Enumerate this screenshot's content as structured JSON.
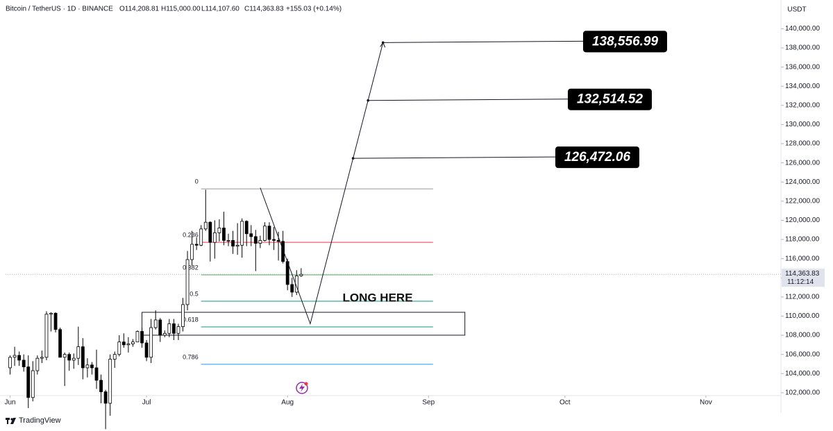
{
  "chart_data": {
    "type": "candlestick",
    "header": [
      "Bitcoin / TetherUS · 1D · BINANCE",
      "O114,208.81",
      "H115,000.00",
      "L114,107.60",
      "C114,363.83",
      "+155.03 (+0.14%)"
    ],
    "y_unit": "USDT",
    "brand": "TradingView",
    "annotation": "LONG HERE",
    "last_price_label": "114,363.83",
    "countdown": "11:12:14",
    "xlim": [
      -1,
      169.5
    ],
    "ylim": [
      101700,
      143000
    ],
    "xticks": [
      {
        "value": 0,
        "label": "Jun"
      },
      {
        "value": 30,
        "label": "Jul"
      },
      {
        "value": 61,
        "label": "Aug"
      },
      {
        "value": 92,
        "label": "Sep"
      },
      {
        "value": 122,
        "label": "Oct"
      },
      {
        "value": 153,
        "label": "Nov"
      }
    ],
    "yticks": [
      {
        "value": 102000,
        "label": "102,000.00"
      },
      {
        "value": 104000,
        "label": "104,000.00"
      },
      {
        "value": 106000,
        "label": "106,000.00"
      },
      {
        "value": 108000,
        "label": "108,000.00"
      },
      {
        "value": 110000,
        "label": "110,000.00"
      },
      {
        "value": 112000,
        "label": "112,000.00"
      },
      {
        "value": 114000,
        "label": "114,000.00"
      },
      {
        "value": 116000,
        "label": "116,000.00"
      },
      {
        "value": 118000,
        "label": "118,000.00"
      },
      {
        "value": 120000,
        "label": "120,000.00"
      },
      {
        "value": 122000,
        "label": "122,000.00"
      },
      {
        "value": 124000,
        "label": "124,000.00"
      },
      {
        "value": 126000,
        "label": "126,000.00"
      },
      {
        "value": 128000,
        "label": "128,000.00"
      },
      {
        "value": 130000,
        "label": "130,000.00"
      },
      {
        "value": 132000,
        "label": "132,000.00"
      },
      {
        "value": 134000,
        "label": "134,000.00"
      },
      {
        "value": 136000,
        "label": "136,000.00"
      },
      {
        "value": 138000,
        "label": "138,000.00"
      },
      {
        "value": 140000,
        "label": "140,000.00"
      }
    ],
    "up_color": "#ffffff",
    "down_color": "#000000",
    "x": [
      0,
      1,
      2,
      3,
      4,
      5,
      6,
      7,
      8,
      9,
      10,
      11,
      12,
      13,
      14,
      15,
      16,
      17,
      18,
      19,
      20,
      21,
      22,
      23,
      24,
      25,
      26,
      27,
      28,
      29,
      30,
      31,
      32,
      33,
      34,
      35,
      36,
      37,
      38,
      39,
      40,
      41,
      42,
      43,
      44,
      45,
      46,
      47,
      48,
      49,
      50,
      51,
      52,
      53,
      54,
      55,
      56,
      57,
      58,
      59,
      60,
      61,
      62,
      63,
      64
    ],
    "open": [
      104600,
      105700,
      105900,
      105400,
      104700,
      101500,
      104300,
      105600,
      105700,
      110200,
      110300,
      108600,
      105700,
      106000,
      105400,
      105600,
      106800,
      104600,
      104900,
      104600,
      103300,
      102100,
      100900,
      105500,
      106000,
      107300,
      107000,
      107100,
      107300,
      108400,
      107200,
      105700,
      108800,
      109600,
      108000,
      108200,
      109200,
      108200,
      108900,
      111200,
      115900,
      117500,
      117400,
      119100,
      119800,
      117700,
      118700,
      119200,
      117900,
      117900,
      117300,
      117400,
      119900,
      118600,
      118300,
      117600,
      117900,
      119400,
      118000,
      117900,
      117800,
      115700,
      113300,
      112500,
      114208.81
    ],
    "high": [
      105900,
      106800,
      106300,
      106000,
      105900,
      105300,
      105900,
      106400,
      110500,
      110400,
      110400,
      108800,
      106200,
      106200,
      106100,
      108900,
      107700,
      105600,
      105200,
      106500,
      103900,
      102300,
      106000,
      106300,
      108000,
      108200,
      107800,
      107600,
      108500,
      108800,
      107500,
      109700,
      110600,
      109800,
      108500,
      109700,
      109700,
      109200,
      111900,
      116800,
      118900,
      118200,
      119500,
      123200,
      119900,
      120000,
      120100,
      120900,
      118600,
      118900,
      119700,
      120200,
      120000,
      119500,
      119000,
      118400,
      119800,
      119800,
      119300,
      118800,
      118900,
      116000,
      114000,
      114800,
      115000
    ],
    "low": [
      103900,
      104800,
      104800,
      104200,
      100400,
      101100,
      103900,
      105100,
      105400,
      108400,
      108300,
      105700,
      102700,
      104300,
      104500,
      104900,
      103400,
      103600,
      103900,
      102400,
      100900,
      98200,
      99600,
      104600,
      105800,
      106700,
      106200,
      106800,
      107300,
      106700,
      105300,
      105100,
      108600,
      107300,
      107800,
      107800,
      107500,
      107500,
      108400,
      110600,
      115300,
      116900,
      117300,
      118900,
      115700,
      116000,
      117800,
      117400,
      117300,
      116500,
      116400,
      116100,
      117300,
      117300,
      114700,
      117100,
      117800,
      117400,
      116900,
      115800,
      115500,
      112700,
      112000,
      112200,
      114107.6
    ],
    "close": [
      105700,
      105900,
      105400,
      104700,
      101500,
      104300,
      105600,
      105700,
      110200,
      110300,
      108600,
      105700,
      106000,
      105400,
      105600,
      106800,
      104600,
      104900,
      104600,
      103300,
      102100,
      100900,
      105500,
      106000,
      107300,
      107000,
      107100,
      107300,
      108400,
      107200,
      105700,
      108800,
      109600,
      108000,
      108200,
      109200,
      108200,
      108900,
      111200,
      115900,
      117500,
      117400,
      119100,
      119800,
      117700,
      118700,
      119200,
      117900,
      117900,
      117300,
      117400,
      119900,
      118600,
      118300,
      117600,
      117900,
      119400,
      118000,
      117900,
      117800,
      115700,
      113300,
      112500,
      114200,
      114363.83
    ],
    "fib": {
      "x_start": 42,
      "x_end": 93,
      "levels": [
        0,
        0.236,
        0.382,
        0.5,
        0.618,
        0.786
      ],
      "prices": [
        123280,
        117707,
        114305,
        111555,
        108876,
        104969
      ],
      "colors": [
        "#9598a1",
        "#f23645",
        "#4caf50",
        "#089981",
        "#089981",
        "#2196f3"
      ]
    },
    "zone": {
      "x_start": 29,
      "x_end": 100,
      "top": 110397,
      "bottom": 108008
    },
    "projection": {
      "x": [
        55,
        66,
        82
      ],
      "y": [
        123400,
        109200,
        138556.99
      ]
    },
    "targets": {
      "values": [
        138556.99,
        132514.52,
        126472.06
      ],
      "value_labels": [
        "138,556.99",
        "132,514.52",
        "126,472.06"
      ]
    }
  }
}
